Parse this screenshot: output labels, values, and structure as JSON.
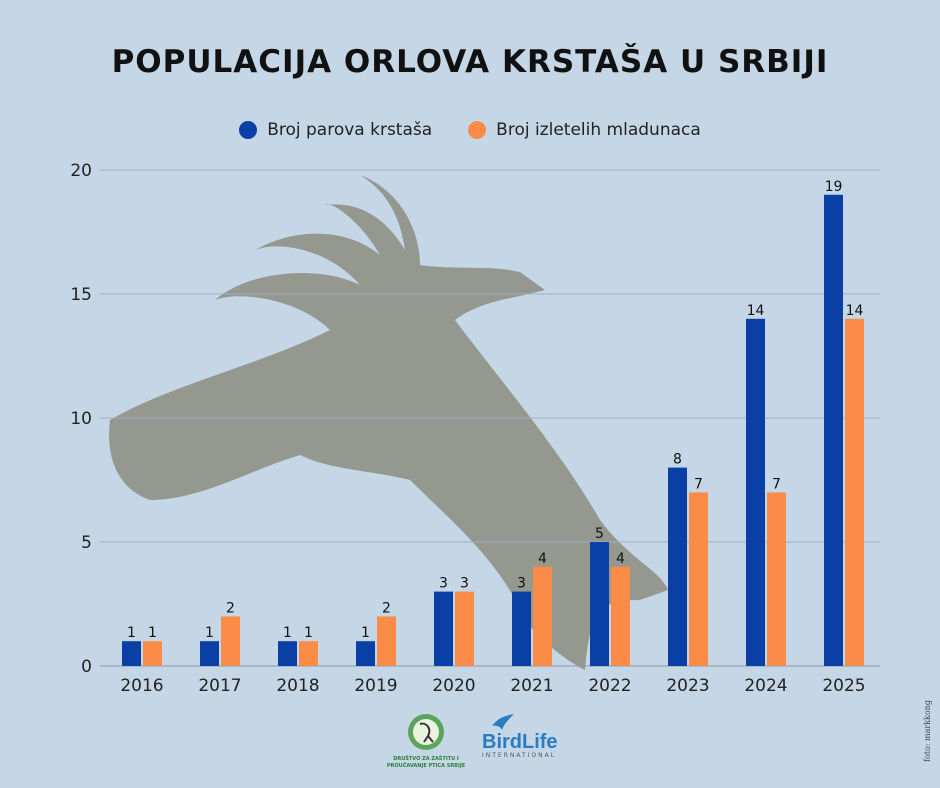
{
  "title": "Populacija orlova krstaša u Srbiji",
  "legend": [
    {
      "label": "Broj parova krstaša",
      "color": "#0a3fa6"
    },
    {
      "label": "Broj izletelih mladunaca",
      "color": "#fb8c48"
    }
  ],
  "chart_data": {
    "type": "bar",
    "categories": [
      "2016",
      "2017",
      "2018",
      "2019",
      "2020",
      "2021",
      "2022",
      "2023",
      "2024",
      "2025"
    ],
    "series": [
      {
        "name": "Broj parova krstaša",
        "values": [
          1,
          1,
          1,
          1,
          3,
          3,
          5,
          8,
          14,
          19
        ],
        "color": "#0a3fa6"
      },
      {
        "name": "Broj izletelih mladunaca",
        "values": [
          1,
          2,
          1,
          2,
          3,
          4,
          4,
          7,
          7,
          14
        ],
        "color": "#fb8c48"
      }
    ],
    "yticks": [
      "0",
      "5",
      "10",
      "15",
      "20"
    ],
    "ylim": [
      0,
      20
    ],
    "grid": true,
    "legend_position": "top-center"
  },
  "logos": {
    "dzppss_text": "DRUŠTVO ZA ZAŠTITU I PROUČAVANJE PTICA SRBIJE",
    "birdlife_name": "BirdLife",
    "birdlife_sub": "INTERNATIONAL"
  },
  "photo_credit": "foto: markkong"
}
